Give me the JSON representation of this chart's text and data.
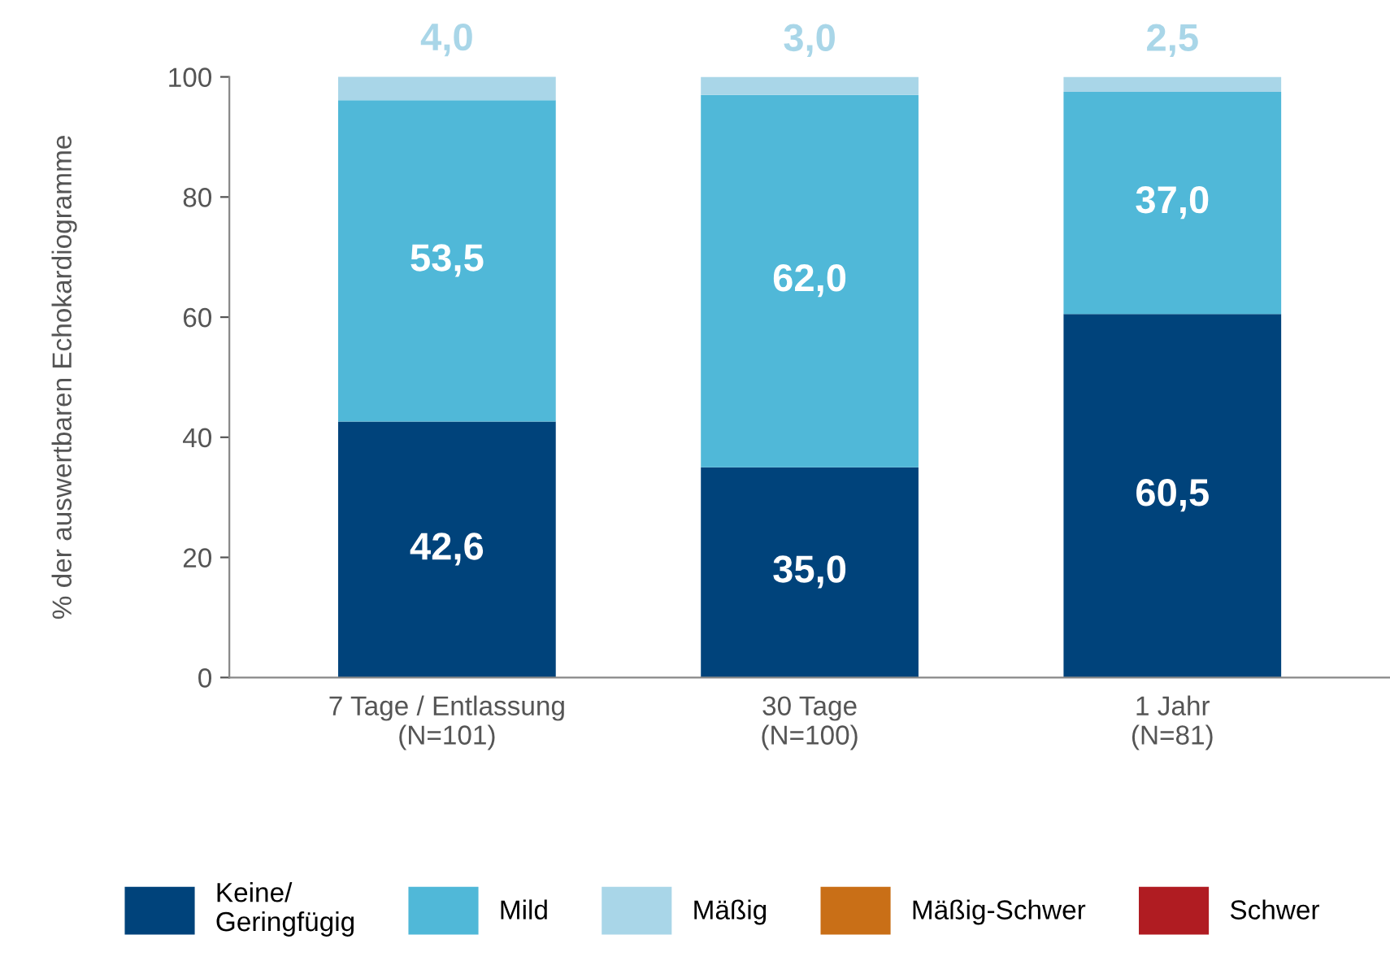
{
  "chart_data": {
    "type": "bar",
    "stacked": true,
    "ylabel": "% der auswertbaren Echokardiogramme",
    "categories": [
      "7 Tage / Entlassung\n(N=101)",
      "30 Tage\n(N=100)",
      "1 Jahr\n(N=81)"
    ],
    "series": [
      {
        "name": "Keine/\nGeringfügig",
        "color": "#00437b",
        "values": [
          42.6,
          35.0,
          60.5
        ],
        "value_labels": [
          "42,6",
          "35,0",
          "60,5"
        ]
      },
      {
        "name": "Mild",
        "color": "#50b8d8",
        "values": [
          53.5,
          62.0,
          37.0
        ],
        "value_labels": [
          "53,5",
          "62,0",
          "37,0"
        ]
      },
      {
        "name": "Mäßig",
        "color": "#a9d6e8",
        "values": [
          4.0,
          3.0,
          2.5
        ],
        "value_labels": [
          "4,0",
          "3,0",
          "2,5"
        ]
      },
      {
        "name": "Mäßig-Schwer",
        "color": "#c96f17",
        "values": [
          0,
          0,
          0
        ]
      },
      {
        "name": "Schwer",
        "color": "#b01c22",
        "values": [
          0,
          0,
          0
        ]
      }
    ],
    "ylim": [
      0,
      100
    ],
    "yticks": [
      0,
      20,
      40,
      60,
      80,
      100
    ],
    "grid": false,
    "legend": "bottom"
  }
}
